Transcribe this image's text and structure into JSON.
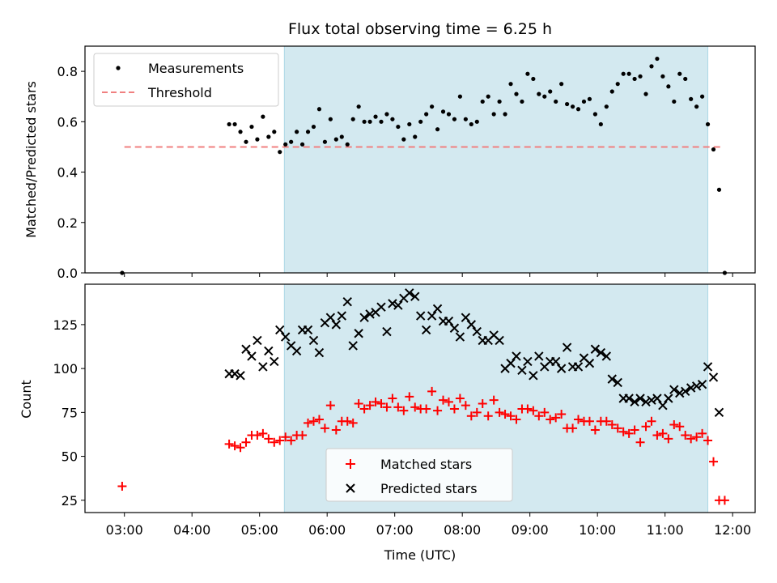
{
  "chart_data": [
    {
      "type": "scatter",
      "title": "Flux total observing time = 6.25 h",
      "ylabel": "Matched/Predicted stars",
      "xlim": [
        "02:25",
        "12:20"
      ],
      "ylim": [
        0,
        0.9
      ],
      "yticks": [
        0.0,
        0.2,
        0.4,
        0.6,
        0.8
      ],
      "grid": false,
      "legend_position": "top-left",
      "shaded_region": {
        "x_start": "05:22",
        "x_end": "11:38",
        "color": "#d3e9f0"
      },
      "threshold": {
        "name": "Threshold",
        "y": 0.5,
        "x_start": "03:00",
        "x_end": "11:52",
        "color": "#f08080"
      },
      "series": [
        {
          "name": "Measurements",
          "color": "#000000",
          "x": [
            "02:58",
            "04:33",
            "04:38",
            "04:43",
            "04:48",
            "04:53",
            "04:58",
            "05:03",
            "05:08",
            "05:13",
            "05:18",
            "05:23",
            "05:28",
            "05:33",
            "05:38",
            "05:43",
            "05:48",
            "05:53",
            "05:58",
            "06:03",
            "06:08",
            "06:13",
            "06:18",
            "06:23",
            "06:28",
            "06:33",
            "06:38",
            "06:43",
            "06:48",
            "06:53",
            "06:58",
            "07:03",
            "07:08",
            "07:13",
            "07:18",
            "07:23",
            "07:28",
            "07:33",
            "07:38",
            "07:43",
            "07:48",
            "07:53",
            "07:58",
            "08:03",
            "08:08",
            "08:13",
            "08:18",
            "08:23",
            "08:28",
            "08:33",
            "08:38",
            "08:43",
            "08:48",
            "08:53",
            "08:58",
            "09:03",
            "09:08",
            "09:13",
            "09:18",
            "09:23",
            "09:28",
            "09:33",
            "09:38",
            "09:43",
            "09:48",
            "09:53",
            "09:58",
            "10:03",
            "10:08",
            "10:13",
            "10:18",
            "10:23",
            "10:28",
            "10:33",
            "10:38",
            "10:43",
            "10:48",
            "10:53",
            "10:58",
            "11:03",
            "11:08",
            "11:13",
            "11:18",
            "11:23",
            "11:28",
            "11:33",
            "11:38",
            "11:43",
            "11:48",
            "11:53"
          ],
          "y": [
            0.0,
            0.59,
            0.59,
            0.56,
            0.52,
            0.58,
            0.53,
            0.62,
            0.54,
            0.56,
            0.48,
            0.51,
            0.52,
            0.56,
            0.51,
            0.56,
            0.58,
            0.65,
            0.52,
            0.61,
            0.53,
            0.54,
            0.51,
            0.61,
            0.66,
            0.6,
            0.6,
            0.62,
            0.6,
            0.63,
            0.61,
            0.58,
            0.53,
            0.59,
            0.54,
            0.6,
            0.63,
            0.66,
            0.57,
            0.64,
            0.63,
            0.61,
            0.7,
            0.61,
            0.59,
            0.6,
            0.68,
            0.7,
            0.63,
            0.68,
            0.63,
            0.75,
            0.71,
            0.68,
            0.79,
            0.77,
            0.71,
            0.7,
            0.72,
            0.68,
            0.75,
            0.67,
            0.66,
            0.65,
            0.68,
            0.69,
            0.63,
            0.59,
            0.66,
            0.72,
            0.75,
            0.79,
            0.79,
            0.77,
            0.78,
            0.71,
            0.82,
            0.85,
            0.78,
            0.74,
            0.68,
            0.79,
            0.77,
            0.69,
            0.66,
            0.7,
            0.59,
            0.49,
            0.33,
            0.0
          ]
        }
      ]
    },
    {
      "type": "scatter",
      "xlabel": "Time (UTC)",
      "ylabel": "Count",
      "xlim": [
        "02:25",
        "12:20"
      ],
      "ylim": [
        18,
        148
      ],
      "xticks": [
        "03:00",
        "04:00",
        "05:00",
        "06:00",
        "07:00",
        "08:00",
        "09:00",
        "10:00",
        "11:00",
        "12:00"
      ],
      "yticks": [
        25,
        50,
        75,
        100,
        125
      ],
      "grid": false,
      "legend_position": "bottom-center",
      "shaded_region": {
        "x_start": "05:22",
        "x_end": "11:38",
        "color": "#d3e9f0"
      },
      "series": [
        {
          "name": "Matched stars",
          "marker": "+",
          "color": "#ff0000",
          "x": [
            "02:58",
            "04:33",
            "04:38",
            "04:43",
            "04:48",
            "04:53",
            "04:58",
            "05:03",
            "05:08",
            "05:13",
            "05:18",
            "05:23",
            "05:28",
            "05:33",
            "05:38",
            "05:43",
            "05:48",
            "05:53",
            "05:58",
            "06:03",
            "06:08",
            "06:13",
            "06:18",
            "06:23",
            "06:28",
            "06:33",
            "06:38",
            "06:43",
            "06:48",
            "06:53",
            "06:58",
            "07:03",
            "07:08",
            "07:13",
            "07:18",
            "07:23",
            "07:28",
            "07:33",
            "07:38",
            "07:43",
            "07:48",
            "07:53",
            "07:58",
            "08:03",
            "08:08",
            "08:13",
            "08:18",
            "08:23",
            "08:28",
            "08:33",
            "08:38",
            "08:43",
            "08:48",
            "08:53",
            "08:58",
            "09:03",
            "09:08",
            "09:13",
            "09:18",
            "09:23",
            "09:28",
            "09:33",
            "09:38",
            "09:43",
            "09:48",
            "09:53",
            "09:58",
            "10:03",
            "10:08",
            "10:13",
            "10:18",
            "10:23",
            "10:28",
            "10:33",
            "10:38",
            "10:43",
            "10:48",
            "10:53",
            "10:58",
            "11:03",
            "11:08",
            "11:13",
            "11:18",
            "11:23",
            "11:28",
            "11:33",
            "11:38",
            "11:43",
            "11:48",
            "11:53"
          ],
          "y": [
            33,
            57,
            56,
            55,
            58,
            62,
            62,
            63,
            60,
            58,
            59,
            61,
            59,
            62,
            62,
            69,
            70,
            71,
            66,
            79,
            65,
            70,
            70,
            69,
            80,
            77,
            79,
            81,
            80,
            78,
            83,
            78,
            76,
            84,
            78,
            77,
            77,
            87,
            76,
            82,
            81,
            77,
            83,
            79,
            73,
            75,
            80,
            73,
            82,
            75,
            74,
            73,
            71,
            77,
            77,
            76,
            73,
            75,
            71,
            72,
            74,
            66,
            66,
            71,
            70,
            70,
            65,
            70,
            70,
            68,
            66,
            64,
            63,
            65,
            58,
            67,
            70,
            62,
            63,
            60,
            68,
            67,
            62,
            60,
            61,
            63,
            59,
            47,
            25,
            25
          ]
        },
        {
          "name": "Predicted stars",
          "marker": "x",
          "color": "#000000",
          "x": [
            "04:33",
            "04:38",
            "04:43",
            "04:48",
            "04:53",
            "04:58",
            "05:03",
            "05:08",
            "05:13",
            "05:18",
            "05:23",
            "05:28",
            "05:33",
            "05:38",
            "05:43",
            "05:48",
            "05:53",
            "05:58",
            "06:03",
            "06:08",
            "06:13",
            "06:18",
            "06:23",
            "06:28",
            "06:33",
            "06:38",
            "06:43",
            "06:48",
            "06:53",
            "06:58",
            "07:03",
            "07:08",
            "07:13",
            "07:18",
            "07:23",
            "07:28",
            "07:33",
            "07:38",
            "07:43",
            "07:48",
            "07:53",
            "07:58",
            "08:03",
            "08:08",
            "08:13",
            "08:18",
            "08:23",
            "08:28",
            "08:33",
            "08:38",
            "08:43",
            "08:48",
            "08:53",
            "08:58",
            "09:03",
            "09:08",
            "09:13",
            "09:18",
            "09:23",
            "09:28",
            "09:33",
            "09:38",
            "09:43",
            "09:48",
            "09:53",
            "09:58",
            "10:03",
            "10:08",
            "10:13",
            "10:18",
            "10:23",
            "10:28",
            "10:33",
            "10:38",
            "10:43",
            "10:48",
            "10:53",
            "10:58",
            "11:03",
            "11:08",
            "11:13",
            "11:18",
            "11:23",
            "11:28",
            "11:33",
            "11:38",
            "11:43",
            "11:48"
          ],
          "y": [
            97,
            97,
            96,
            111,
            107,
            116,
            101,
            110,
            104,
            122,
            118,
            113,
            110,
            122,
            122,
            116,
            109,
            126,
            129,
            125,
            130,
            138,
            113,
            120,
            129,
            131,
            132,
            135,
            121,
            137,
            136,
            140,
            143,
            141,
            130,
            122,
            130,
            134,
            127,
            127,
            123,
            118,
            129,
            125,
            121,
            116,
            116,
            119,
            116,
            100,
            103,
            107,
            99,
            104,
            96,
            107,
            101,
            104,
            104,
            100,
            112,
            101,
            101,
            106,
            103,
            111,
            109,
            107,
            94,
            92,
            83,
            83,
            81,
            83,
            81,
            82,
            83,
            79,
            83,
            88,
            86,
            87,
            89,
            90,
            91,
            101,
            95,
            75
          ]
        }
      ]
    }
  ]
}
